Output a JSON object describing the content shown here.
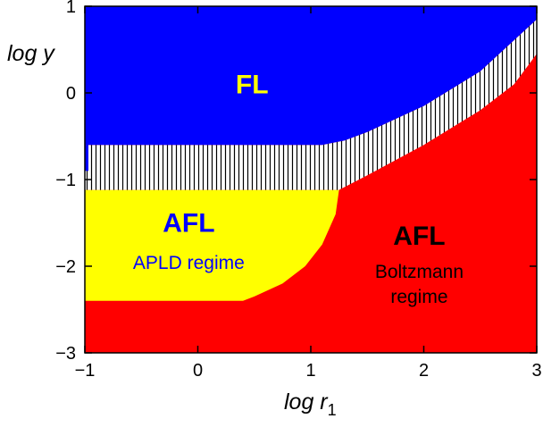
{
  "chart_data": {
    "type": "area",
    "xlabel": "log r",
    "xlabel_subscript": "1",
    "ylabel": "log y",
    "xlim": [
      -1,
      3
    ],
    "ylim": [
      -3,
      1
    ],
    "x_ticks": [
      "−1",
      "0",
      "1",
      "2",
      "3"
    ],
    "y_ticks": [
      "1",
      "0",
      "−1",
      "−2",
      "−3"
    ],
    "grid": false,
    "colors": {
      "fl": "#0000ff",
      "crossover": "#ffffff",
      "afl_apld": "#ffff00",
      "afl_boltzmann": "#ff0000",
      "fl_label": "#ffff00",
      "afl_apld_label": "#0000ff",
      "afl_boltzmann_label": "#000000",
      "afl_boltzmann_sub": "#000000"
    },
    "boundaries": {
      "fl_lower": [
        [
          -1,
          -0.6
        ],
        [
          1.1,
          -0.6
        ],
        [
          1.3,
          -0.55
        ],
        [
          1.5,
          -0.45
        ],
        [
          2.0,
          -0.15
        ],
        [
          2.5,
          0.25
        ],
        [
          3,
          0.85
        ]
      ],
      "crossover_lower": [
        [
          -1,
          -1.12
        ],
        [
          1.25,
          -1.12
        ],
        [
          1.5,
          -0.95
        ],
        [
          2.0,
          -0.6
        ],
        [
          2.5,
          -0.2
        ],
        [
          2.8,
          0.1
        ],
        [
          3,
          0.45
        ]
      ],
      "apld_right": [
        [
          1.25,
          -1.12
        ],
        [
          1.22,
          -1.4
        ],
        [
          1.1,
          -1.75
        ],
        [
          0.95,
          -2.0
        ],
        [
          0.75,
          -2.2
        ],
        [
          0.5,
          -2.35
        ],
        [
          0.4,
          -2.4
        ]
      ],
      "apld_bottom": [
        [
          -1,
          -2.4
        ],
        [
          0.4,
          -2.4
        ]
      ]
    },
    "regions": [
      {
        "key": "fl",
        "label": "FL",
        "at": [
          0.48,
          0.1
        ]
      },
      {
        "key": "afl_apld",
        "label": "AFL",
        "sublabel": "APLD regime",
        "at": [
          -0.08,
          -1.5
        ],
        "sub_at": [
          -0.08,
          -1.95
        ]
      },
      {
        "key": "afl_boltzmann",
        "label": "AFL",
        "sublabel_lines": [
          "Boltzmann",
          "regime"
        ],
        "at": [
          1.96,
          -1.65
        ],
        "sub_at": [
          1.96,
          -2.05
        ]
      }
    ]
  }
}
